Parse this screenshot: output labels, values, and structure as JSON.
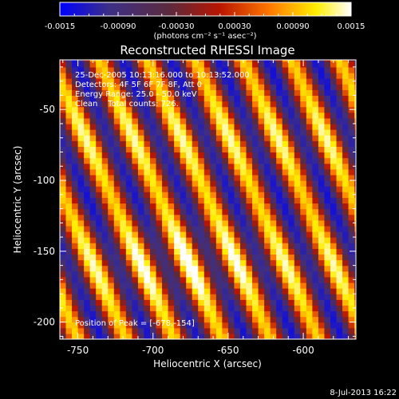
{
  "chart_data": {
    "type": "heatmap",
    "title": "Reconstructed RHESSI Image",
    "xlabel": "Heliocentric X (arcsec)",
    "ylabel": "Heliocentric Y (arcsec)",
    "xlim": [
      -762,
      -565
    ],
    "ylim": [
      -212,
      -15
    ],
    "x_ticks": [
      -750,
      -700,
      -650,
      -600
    ],
    "y_ticks": [
      -50,
      -100,
      -150,
      -200
    ],
    "colorbar": {
      "range": [
        -0.0015,
        0.0015
      ],
      "ticks": [
        "-0.0015",
        "-0.00090",
        "-0.00030",
        "0.00030",
        "0.00090",
        "0.0015"
      ],
      "unit_label": "(photons cm⁻² s⁻¹ asec⁻²)"
    },
    "colormap": [
      "#0000ff",
      "#3d2f86",
      "#5d2a3c",
      "#ba1500",
      "#ff7800",
      "#ffee00",
      "#ffffff"
    ],
    "annotations": [
      "25-Dec-2005 10:13:16.000 to 10:13:52.000",
      "Detectors: 4F 5F 6F 7F 8F, Att 0",
      "Energy Range: 25.0 - 50.0 keV",
      "Clean    Total counts: 726."
    ],
    "peak": {
      "label": "Position of Peak = [-678,-154]",
      "x": -678,
      "y": -154
    },
    "fringe_pattern": {
      "stripe_spacing_along_x_arcsec": 32,
      "stripe_slope_dy_dx": -2.4,
      "reference_crest_point": [
        -678,
        -154
      ]
    }
  },
  "footer": {
    "timestamp": "8-Jul-2013 16:22"
  }
}
